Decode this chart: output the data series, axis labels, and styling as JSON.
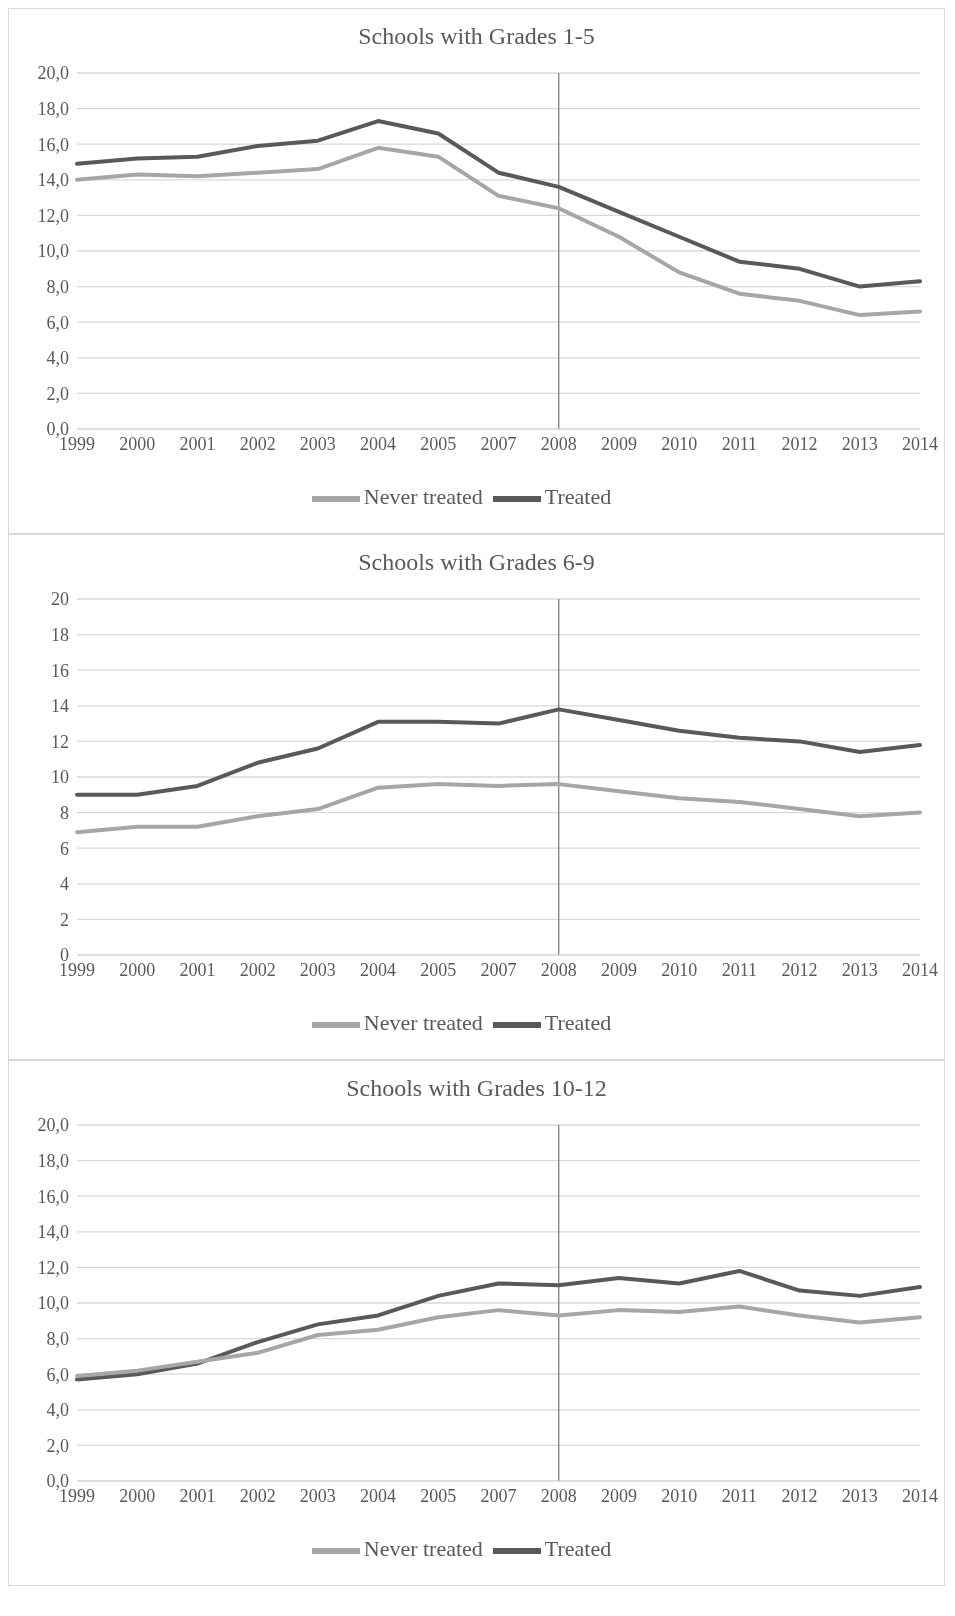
{
  "chart_data": [
    {
      "type": "line",
      "title": "Schools with Grades 1-5",
      "categories": [
        "1999",
        "2000",
        "2001",
        "2002",
        "2003",
        "2004",
        "2005",
        "2007",
        "2008",
        "2009",
        "2010",
        "2011",
        "2012",
        "2013",
        "2014"
      ],
      "series": [
        {
          "name": "Treated",
          "color": "#595959",
          "values": [
            14.9,
            15.2,
            15.3,
            15.9,
            16.2,
            17.3,
            16.6,
            14.4,
            13.6,
            12.2,
            10.8,
            9.4,
            9.0,
            8.0,
            8.3
          ]
        },
        {
          "name": "Never treated",
          "color": "#a6a6a6",
          "values": [
            14.0,
            14.3,
            14.2,
            14.4,
            14.6,
            15.8,
            15.3,
            13.1,
            12.4,
            10.8,
            8.8,
            7.6,
            7.2,
            6.4,
            6.6
          ]
        }
      ],
      "ylim": [
        0,
        20
      ],
      "yticks": [
        {
          "value": 0,
          "label": "0,0"
        },
        {
          "value": 2,
          "label": "2,0"
        },
        {
          "value": 4,
          "label": "4,0"
        },
        {
          "value": 6,
          "label": "6,0"
        },
        {
          "value": 8,
          "label": "8,0"
        },
        {
          "value": 10,
          "label": "10,0"
        },
        {
          "value": 12,
          "label": "12,0"
        },
        {
          "value": 14,
          "label": "14,0"
        },
        {
          "value": 16,
          "label": "16,0"
        },
        {
          "value": 18,
          "label": "18,0"
        },
        {
          "value": 20,
          "label": "20,0"
        }
      ],
      "ref_lines": [
        {
          "axis": "x",
          "value": "2008",
          "color": "#7f7f7f"
        }
      ],
      "grid": "y",
      "legend": "bottom",
      "marker": "none",
      "line_style": "solid"
    },
    {
      "type": "line",
      "title": "Schools with Grades 6-9",
      "categories": [
        "1999",
        "2000",
        "2001",
        "2002",
        "2003",
        "2004",
        "2005",
        "2007",
        "2008",
        "2009",
        "2010",
        "2011",
        "2012",
        "2013",
        "2014"
      ],
      "series": [
        {
          "name": "Treated",
          "color": "#595959",
          "values": [
            9.0,
            9.0,
            9.5,
            10.8,
            11.6,
            13.1,
            13.1,
            13.0,
            13.8,
            13.2,
            12.6,
            12.2,
            12.0,
            11.4,
            11.8
          ]
        },
        {
          "name": "Never treated",
          "color": "#a6a6a6",
          "values": [
            6.9,
            7.2,
            7.2,
            7.8,
            8.2,
            9.4,
            9.6,
            9.5,
            9.6,
            9.2,
            8.8,
            8.6,
            8.2,
            7.8,
            8.0
          ]
        }
      ],
      "ylim": [
        0,
        20
      ],
      "yticks": [
        0,
        2,
        4,
        6,
        8,
        10,
        12,
        14,
        16,
        18,
        20
      ],
      "ref_lines": [
        {
          "axis": "x",
          "value": "2008",
          "color": "#7f7f7f"
        }
      ],
      "grid": "y",
      "legend": "bottom",
      "marker": "none",
      "line_style": "solid"
    },
    {
      "type": "line",
      "title": "Schools with Grades 10-12",
      "categories": [
        "1999",
        "2000",
        "2001",
        "2002",
        "2003",
        "2004",
        "2005",
        "2007",
        "2008",
        "2009",
        "2010",
        "2011",
        "2012",
        "2013",
        "2014"
      ],
      "series": [
        {
          "name": "Treated",
          "color": "#595959",
          "values": [
            5.7,
            6.0,
            6.6,
            7.8,
            8.8,
            9.3,
            10.4,
            11.1,
            11.0,
            11.4,
            11.1,
            11.8,
            10.7,
            10.4,
            10.9
          ]
        },
        {
          "name": "Never treated",
          "color": "#a6a6a6",
          "values": [
            5.9,
            6.2,
            6.7,
            7.2,
            8.2,
            8.5,
            9.2,
            9.6,
            9.3,
            9.6,
            9.5,
            9.8,
            9.3,
            8.9,
            9.2
          ]
        }
      ],
      "ylim": [
        0,
        20
      ],
      "yticks": [
        {
          "value": 0,
          "label": "0,0"
        },
        {
          "value": 2,
          "label": "2,0"
        },
        {
          "value": 4,
          "label": "4,0"
        },
        {
          "value": 6,
          "label": "6,0"
        },
        {
          "value": 8,
          "label": "8,0"
        },
        {
          "value": 10,
          "label": "10,0"
        },
        {
          "value": 12,
          "label": "12,0"
        },
        {
          "value": 14,
          "label": "14,0"
        },
        {
          "value": 16,
          "label": "16,0"
        },
        {
          "value": 18,
          "label": "18,0"
        },
        {
          "value": 20,
          "label": "20,0"
        }
      ],
      "ref_lines": [
        {
          "axis": "x",
          "value": "2008",
          "color": "#7f7f7f"
        }
      ],
      "grid": "y",
      "legend": "bottom",
      "marker": "none",
      "line_style": "solid"
    }
  ]
}
